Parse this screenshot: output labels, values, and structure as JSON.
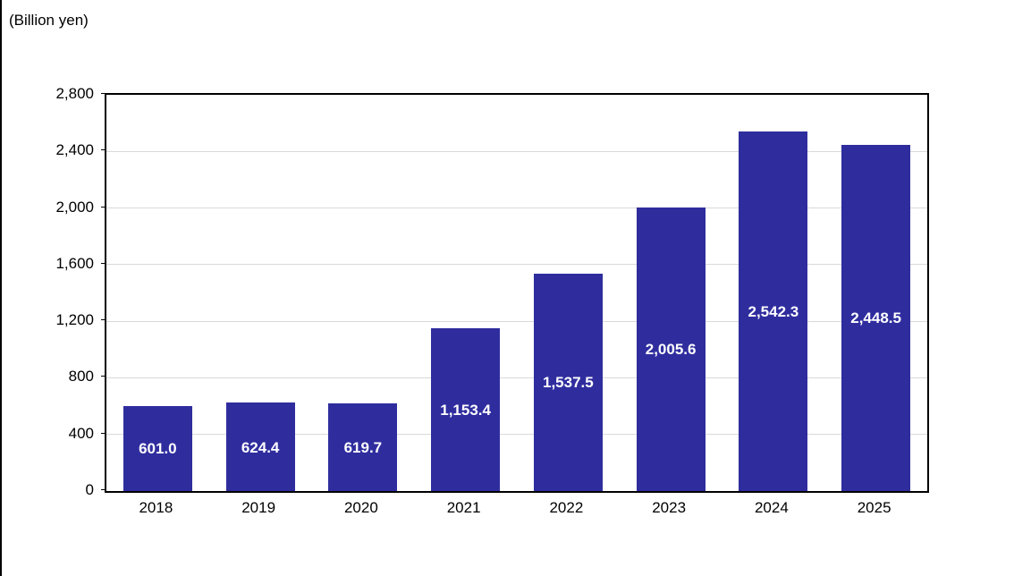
{
  "chart_data": {
    "type": "bar",
    "title": "",
    "unit_label": "(Billion yen)",
    "xlabel": "",
    "ylabel": "",
    "categories": [
      "2018",
      "2019",
      "2020",
      "2021",
      "2022",
      "2023",
      "2024",
      "2025"
    ],
    "values": [
      601.0,
      624.4,
      619.7,
      1153.4,
      1537.5,
      2005.6,
      2542.3,
      2448.5
    ],
    "value_labels": [
      "601.0",
      "624.4",
      "619.7",
      "1,153.4",
      "1,537.5",
      "2,005.6",
      "2,542.3",
      "2,448.5"
    ],
    "ylim": [
      0,
      2800
    ],
    "ytick_step": 400,
    "ytick_labels": [
      "0",
      "400",
      "800",
      "1,200",
      "1,600",
      "2,000",
      "2,400",
      "2,800"
    ],
    "grid": "horizontal",
    "legend": "none",
    "colors": {
      "bar_fill": "#2F2D9E",
      "value_label_text": "#ffffff",
      "gridline": "#D9D9D9",
      "axis_border": "#000000",
      "text": "#000000",
      "background": "#ffffff"
    }
  }
}
